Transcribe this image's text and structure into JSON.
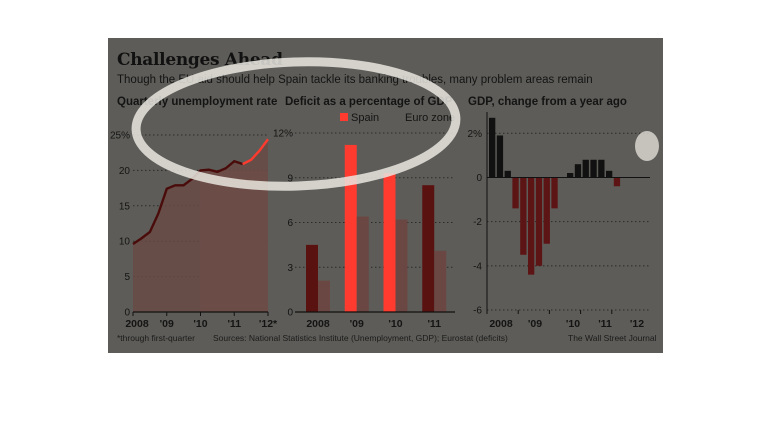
{
  "header": {
    "title": "Challenges Ahead",
    "subtitle": "Though the EU aid should help Spain tackle its banking troubles, many problem areas remain"
  },
  "footer": {
    "footnote": "*through first-quarter",
    "sources": "Sources: National Statistics Institute (Unemployment, GDP); Eurostat (deficits)",
    "credit": "The Wall Street Journal"
  },
  "colors": {
    "panel": "#5d5c58",
    "spain": "#ff3b30",
    "spain_bar": "#5a1210",
    "eurozone_bar": "#6a4743",
    "area": "#6a4a45",
    "gdp_positive": "#111111",
    "gdp_negative": "#5d1414",
    "highlight_oval": "#e9e6df"
  },
  "chart_data": [
    {
      "type": "area",
      "title": "Quarterly unemployment rate",
      "ylim": [
        0,
        25
      ],
      "yticks": [
        "0",
        "5",
        "10",
        "15",
        "20",
        "25%"
      ],
      "xticks": [
        "2008",
        "'09",
        "'10",
        "'11",
        "'12*"
      ],
      "x": [
        2008.0,
        2008.25,
        2008.5,
        2008.75,
        2009.0,
        2009.25,
        2009.5,
        2009.75,
        2010.0,
        2010.25,
        2010.5,
        2010.75,
        2011.0,
        2011.25,
        2011.5,
        2011.75,
        2012.0
      ],
      "values": [
        9.6,
        10.4,
        11.3,
        13.9,
        17.4,
        17.9,
        17.9,
        18.8,
        20.0,
        20.1,
        19.8,
        20.3,
        21.3,
        20.9,
        21.5,
        22.8,
        24.4
      ],
      "highlight_from_index": 13,
      "shaded_from_index": 8,
      "shaded_level": 20,
      "grid": true
    },
    {
      "type": "bar",
      "title": "Deficit as a percentage of GDP",
      "ylim": [
        0,
        12
      ],
      "yticks": [
        "0",
        "3",
        "6",
        "9",
        "12%"
      ],
      "categories": [
        "2008",
        "'09",
        "'10",
        "'11"
      ],
      "series": [
        {
          "name": "Spain",
          "values": [
            4.5,
            11.2,
            9.3,
            8.5
          ]
        },
        {
          "name": "Euro zone",
          "values": [
            2.1,
            6.4,
            6.2,
            4.1
          ]
        }
      ],
      "highlight_categories": [
        1,
        2
      ],
      "legend": "top-right",
      "grid": true
    },
    {
      "type": "bar",
      "title": "GDP, change from a year ago",
      "ylim": [
        -6,
        2.6
      ],
      "yticks": [
        "-6",
        "-4",
        "-2",
        "0",
        "2%"
      ],
      "xticks": [
        "2008",
        "'09",
        "'10",
        "'11",
        "'12"
      ],
      "values": [
        2.7,
        1.9,
        0.3,
        -1.4,
        -3.5,
        -4.4,
        -4.0,
        -3.0,
        -1.4,
        0.0,
        0.2,
        0.6,
        0.8,
        0.8,
        0.8,
        0.3,
        -0.4
      ],
      "grid": true
    }
  ]
}
